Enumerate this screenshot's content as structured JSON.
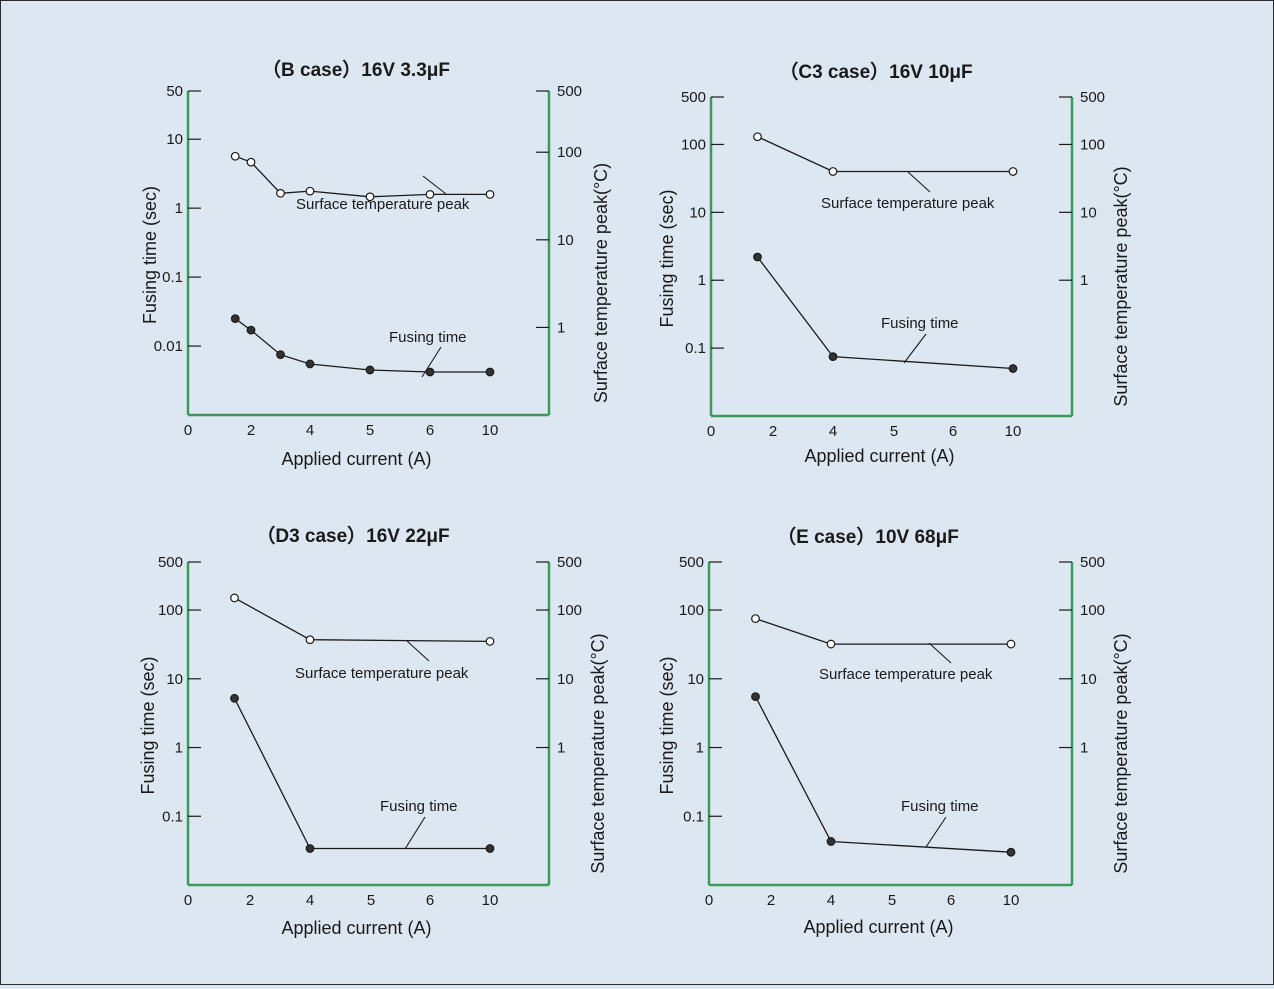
{
  "chart_data": [
    {
      "type": "line",
      "title": "（B case）16V 3.3μF",
      "xlabel": "Applied current (A)",
      "ylabel": "Fusing time (sec)",
      "y2label": "Surface temperature peak(°C)",
      "x_ticks": [
        "0",
        "2",
        "4",
        "5",
        "6",
        "10"
      ],
      "x_tick_values": [
        0,
        2,
        4,
        5,
        6,
        10
      ],
      "x_axis_kind": "b",
      "y_ticks": [
        "50",
        "10",
        "1",
        "0.1",
        "0.01"
      ],
      "y_tick_values": [
        50,
        10,
        1,
        0.1,
        0.01
      ],
      "ylim": [
        0.001,
        50
      ],
      "y2_ticks": [
        "500",
        "100",
        "10",
        "1"
      ],
      "y2_tick_values": [
        500,
        100,
        10,
        1
      ],
      "y2lim": [
        0.1,
        500
      ],
      "annotations": {
        "temp": "Surface temperature peak",
        "fuse": "Fusing time"
      },
      "series": [
        {
          "name": "Surface temperature peak",
          "axis": "right",
          "marker": "open",
          "x": [
            1.5,
            2,
            3,
            4,
            5,
            6,
            10
          ],
          "y": [
            90,
            77,
            34,
            36,
            31,
            33,
            33
          ]
        },
        {
          "name": "Fusing time",
          "axis": "left",
          "marker": "filled",
          "x": [
            1.5,
            2,
            3,
            4,
            5,
            6,
            10
          ],
          "y": [
            0.025,
            0.017,
            0.0075,
            0.0055,
            0.0045,
            0.0042,
            0.0042
          ]
        }
      ]
    },
    {
      "type": "line",
      "title": "（C3 case）16V 10μF",
      "xlabel": "Applied current (A)",
      "ylabel": "Fusing time (sec)",
      "y2label": "Surface temperature peak(°C)",
      "x_ticks": [
        "0",
        "2",
        "4",
        "5",
        "6",
        "10"
      ],
      "x_tick_values": [
        0,
        2,
        4,
        5,
        6,
        10
      ],
      "x_axis_kind": "linear",
      "y_ticks": [
        "500",
        "100",
        "10",
        "1",
        "0.1"
      ],
      "y_tick_values": [
        500,
        100,
        10,
        1,
        0.1
      ],
      "ylim": [
        0.01,
        500
      ],
      "y2_ticks": [
        "500",
        "100",
        "10",
        "1"
      ],
      "y2_tick_values": [
        500,
        100,
        10,
        1
      ],
      "y2lim": [
        0.01,
        500
      ],
      "annotations": {
        "temp": "Surface temperature peak",
        "fuse": "Fusing time"
      },
      "series": [
        {
          "name": "Surface temperature peak",
          "axis": "right",
          "marker": "open",
          "x": [
            1.5,
            4,
            10
          ],
          "y": [
            130,
            40,
            40
          ]
        },
        {
          "name": "Fusing time",
          "axis": "left",
          "marker": "filled",
          "x": [
            1.5,
            4,
            10
          ],
          "y": [
            2.2,
            0.075,
            0.05
          ]
        }
      ]
    },
    {
      "type": "line",
      "title": "（D3 case）16V 22μF",
      "xlabel": "Applied current (A)",
      "ylabel": "Fusing time (sec)",
      "y2label": "Surface temperature peak(°C)",
      "x_ticks": [
        "0",
        "2",
        "4",
        "5",
        "6",
        "10"
      ],
      "x_tick_values": [
        0,
        2,
        4,
        5,
        6,
        10
      ],
      "x_axis_kind": "linear",
      "y_ticks": [
        "500",
        "100",
        "10",
        "1",
        "0.1"
      ],
      "y_tick_values": [
        500,
        100,
        10,
        1,
        0.1
      ],
      "ylim": [
        0.01,
        500
      ],
      "y2_ticks": [
        "500",
        "100",
        "10",
        "1"
      ],
      "y2_tick_values": [
        500,
        100,
        10,
        1
      ],
      "y2lim": [
        0.01,
        500
      ],
      "annotations": {
        "temp": "Surface temperature peak",
        "fuse": "Fusing time"
      },
      "series": [
        {
          "name": "Surface temperature peak",
          "axis": "right",
          "marker": "open",
          "x": [
            1.5,
            4,
            10
          ],
          "y": [
            150,
            37,
            35
          ]
        },
        {
          "name": "Fusing time",
          "axis": "left",
          "marker": "filled",
          "x": [
            1.5,
            4,
            10
          ],
          "y": [
            5.2,
            0.034,
            0.034
          ]
        }
      ]
    },
    {
      "type": "line",
      "title": "（E case）10V 68μF",
      "xlabel": "Applied current (A)",
      "ylabel": "Fusing time (sec)",
      "y2label": "Surface temperature peak(°C)",
      "x_ticks": [
        "0",
        "2",
        "4",
        "5",
        "6",
        "10"
      ],
      "x_tick_values": [
        0,
        2,
        4,
        5,
        6,
        10
      ],
      "x_axis_kind": "linear",
      "y_ticks": [
        "500",
        "100",
        "10",
        "1",
        "0.1"
      ],
      "y_tick_values": [
        500,
        100,
        10,
        1,
        0.1
      ],
      "ylim": [
        0.01,
        500
      ],
      "y2_ticks": [
        "500",
        "100",
        "10",
        "1"
      ],
      "y2_tick_values": [
        500,
        100,
        10,
        1
      ],
      "y2lim": [
        0.01,
        500
      ],
      "annotations": {
        "temp": "Surface temperature peak",
        "fuse": "Fusing time"
      },
      "series": [
        {
          "name": "Surface temperature peak",
          "axis": "right",
          "marker": "open",
          "x": [
            1.5,
            4,
            10
          ],
          "y": [
            75,
            32,
            32
          ]
        },
        {
          "name": "Fusing time",
          "axis": "left",
          "marker": "filled",
          "x": [
            1.5,
            4,
            10
          ],
          "y": [
            5.5,
            0.043,
            0.03
          ]
        }
      ]
    }
  ],
  "colors": {
    "axis": "#3a9a5a",
    "line": "#1a1a1a",
    "background": "#dde7f2",
    "marker_fill": "#333333"
  }
}
